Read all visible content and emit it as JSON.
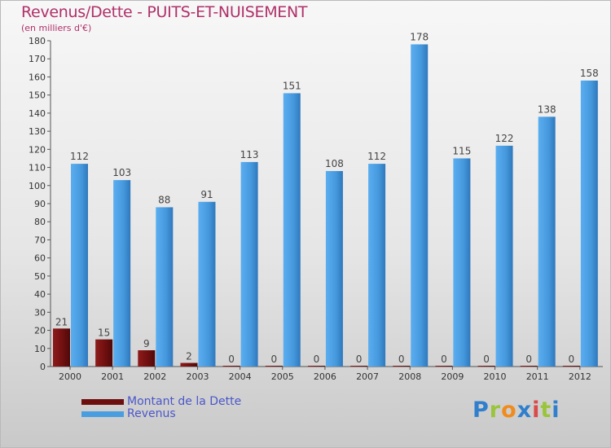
{
  "header": {
    "title": "Revenus/Dette - PUITS-ET-NUISEMENT",
    "subtitle": "(en milliers d'€)"
  },
  "legend": {
    "items": [
      {
        "label": "Montant de la Dette",
        "color": "#6e0f0f"
      },
      {
        "label": "Revenus",
        "color": "#4a9ee0"
      }
    ]
  },
  "logo": {
    "letters": [
      "P",
      "r",
      "o",
      "x",
      "i",
      "t",
      "i"
    ],
    "colors": [
      "#2f7fcc",
      "#9ac53a",
      "#f08c1e",
      "#2f7fcc",
      "#d94b4b",
      "#9ac53a",
      "#2f7fcc"
    ]
  },
  "chart_data": {
    "type": "bar",
    "title": "Revenus/Dette - PUITS-ET-NUISEMENT",
    "subtitle": "(en milliers d'€)",
    "categories": [
      "2000",
      "2001",
      "2002",
      "2003",
      "2004",
      "2005",
      "2006",
      "2007",
      "2008",
      "2009",
      "2010",
      "2011",
      "2012"
    ],
    "series": [
      {
        "name": "Montant de la Dette",
        "values": [
          21,
          15,
          9,
          2,
          0,
          0,
          0,
          0,
          0,
          0,
          0,
          0,
          0
        ]
      },
      {
        "name": "Revenus",
        "values": [
          112,
          103,
          88,
          91,
          113,
          151,
          108,
          112,
          178,
          115,
          122,
          138,
          158
        ]
      }
    ],
    "ylim": [
      0,
      180
    ],
    "yticks": [
      0,
      10,
      20,
      30,
      40,
      50,
      60,
      70,
      80,
      90,
      100,
      110,
      120,
      130,
      140,
      150,
      160,
      170,
      180
    ],
    "grid": false,
    "legend_position": "bottom-left"
  }
}
